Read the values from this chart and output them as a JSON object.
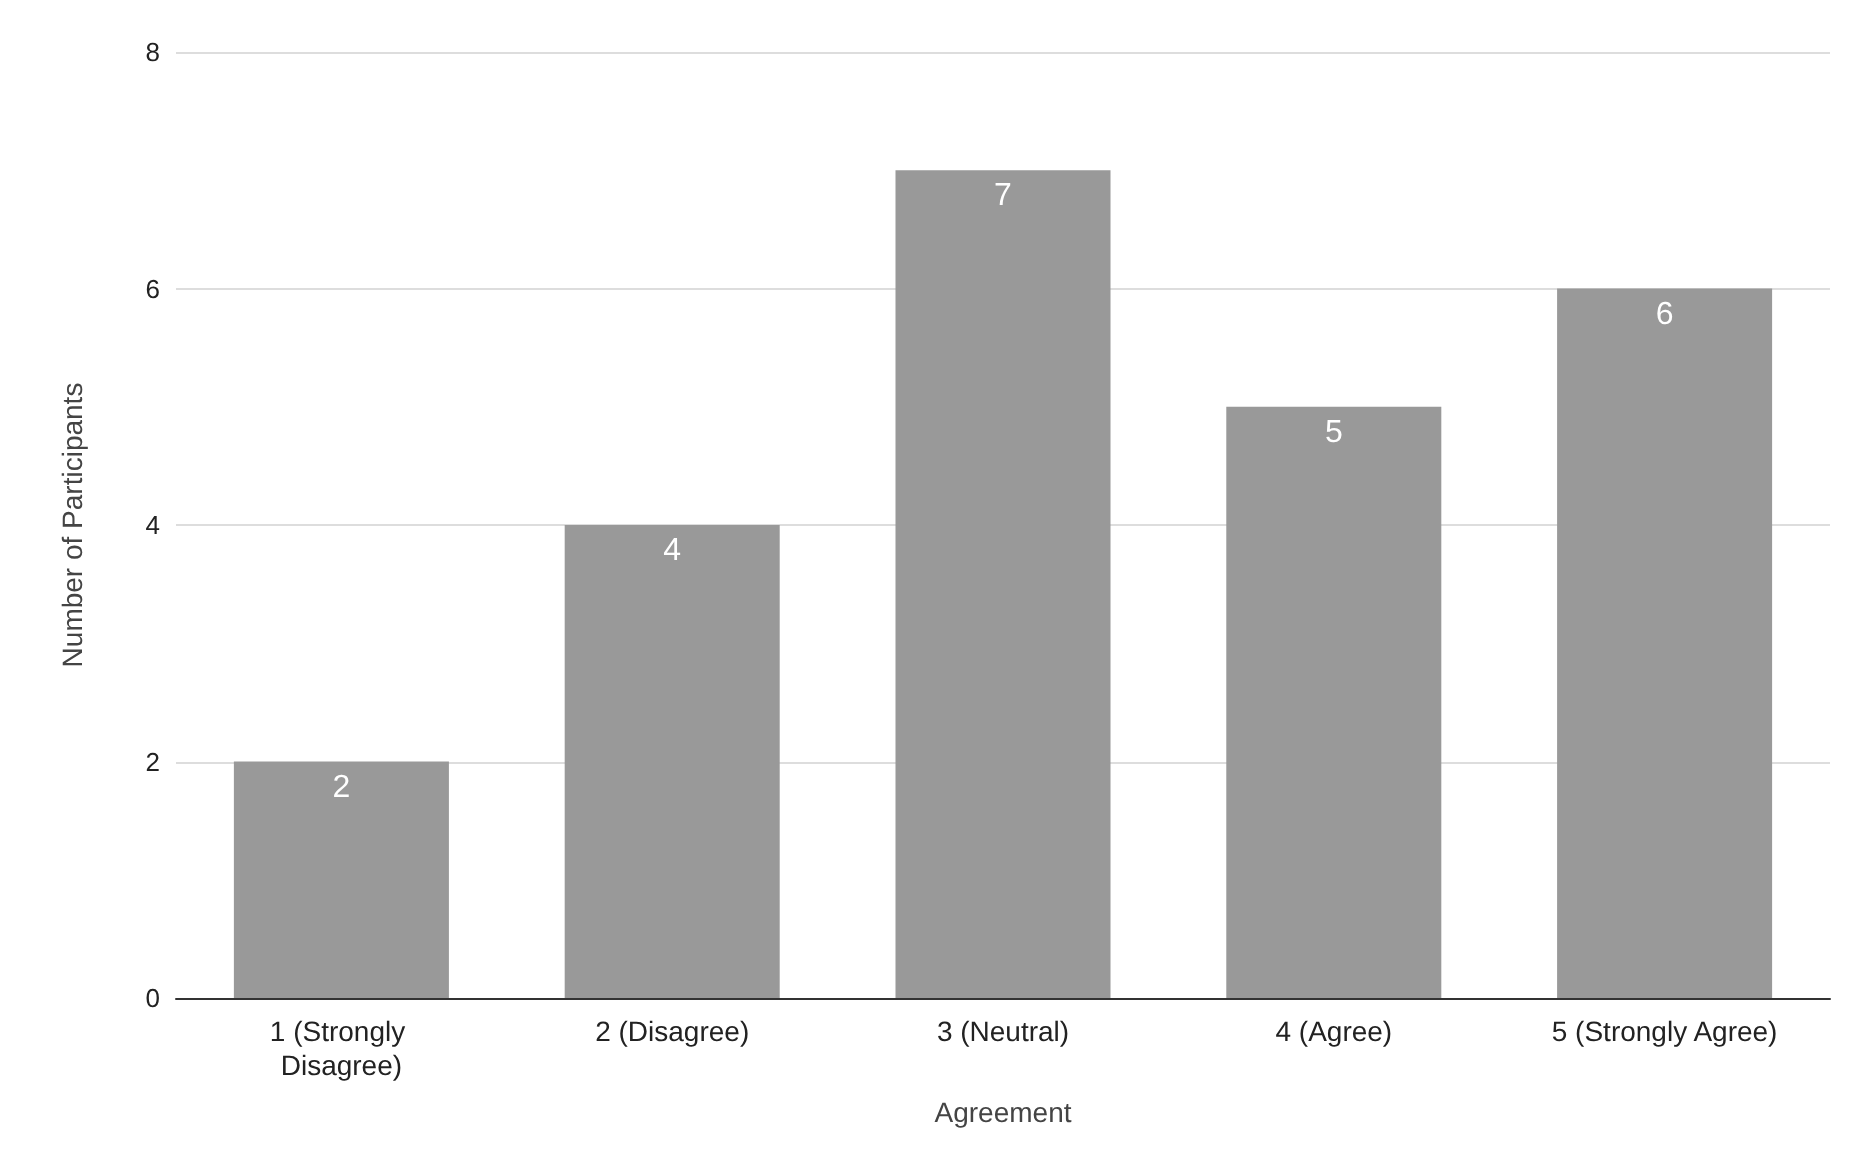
{
  "chart_data": {
    "type": "bar",
    "xlabel": "Agreement",
    "ylabel": "Number of Participants",
    "categories": [
      "1 (Strongly Disagree)",
      "2 (Disagree)",
      "3 (Neutral)",
      "4 (Agree)",
      "5 (Strongly Agree)"
    ],
    "values": [
      2,
      4,
      7,
      5,
      6
    ],
    "color": "#999999",
    "ylim": [
      0,
      8
    ],
    "yticks": [
      0,
      2,
      4,
      6,
      8
    ],
    "grid": "y",
    "data_labels": true
  }
}
